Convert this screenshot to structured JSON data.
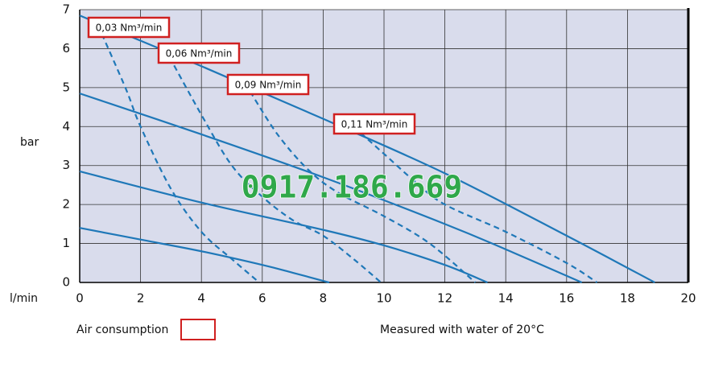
{
  "chart_data": {
    "type": "line",
    "y_label": "bar",
    "x_label": "l/min",
    "xlim": [
      0,
      20
    ],
    "ylim": [
      0,
      7
    ],
    "xticks": [
      0,
      2,
      4,
      6,
      8,
      10,
      12,
      14,
      16,
      18,
      20
    ],
    "yticks": [
      0,
      1,
      2,
      3,
      4,
      5,
      6,
      7
    ],
    "grid": true,
    "background": "#d9dcec",
    "watermark": "0917.186.669",
    "legend_text": "Air consumption",
    "note": "Measured with water of 20°C",
    "series": [
      {
        "color": "#1f78b8",
        "style": "solid",
        "x": [
          0,
          2,
          4,
          6,
          7,
          8.2
        ],
        "values": [
          1.4,
          1.1,
          0.8,
          0.45,
          0.25,
          0
        ]
      },
      {
        "color": "#1f78b8",
        "style": "solid",
        "x": [
          0,
          4,
          8,
          10,
          12,
          13.4
        ],
        "values": [
          2.85,
          2.05,
          1.35,
          0.95,
          0.45,
          0
        ]
      },
      {
        "color": "#1f78b8",
        "style": "solid",
        "x": [
          0,
          4,
          8,
          12,
          14,
          16.5
        ],
        "values": [
          4.85,
          3.8,
          2.7,
          1.5,
          0.85,
          0
        ]
      },
      {
        "color": "#1f78b8",
        "style": "solid",
        "x": [
          0,
          4,
          8,
          12,
          16,
          18.9
        ],
        "values": [
          6.85,
          5.55,
          4.2,
          2.8,
          1.2,
          0
        ]
      },
      {
        "name": "0,03 Nm³/min",
        "color": "#1f78b8",
        "style": "dashed",
        "x": [
          0.6,
          1.5,
          2,
          3,
          4,
          5,
          5.9
        ],
        "values": [
          6.6,
          5,
          4,
          2.4,
          1.3,
          0.6,
          0
        ]
      },
      {
        "name": "0,06 Nm³/min",
        "color": "#1f78b8",
        "style": "dashed",
        "x": [
          2.8,
          4,
          5,
          6,
          7,
          8,
          9,
          9.9
        ],
        "values": [
          6,
          4.3,
          3,
          2.2,
          1.6,
          1.2,
          0.6,
          0
        ]
      },
      {
        "name": "0,09 Nm³/min",
        "color": "#1f78b8",
        "style": "dashed",
        "x": [
          5.6,
          6.5,
          7.5,
          8.5,
          10,
          11.5,
          13
        ],
        "values": [
          4.9,
          3.8,
          2.9,
          2.3,
          1.7,
          1,
          0
        ]
      },
      {
        "name": "0,11 Nm³/min",
        "color": "#1f78b8",
        "style": "dashed",
        "x": [
          9,
          10,
          11,
          12,
          14,
          16,
          17
        ],
        "values": [
          4,
          3.3,
          2.6,
          2,
          1.3,
          0.5,
          0
        ]
      }
    ]
  }
}
